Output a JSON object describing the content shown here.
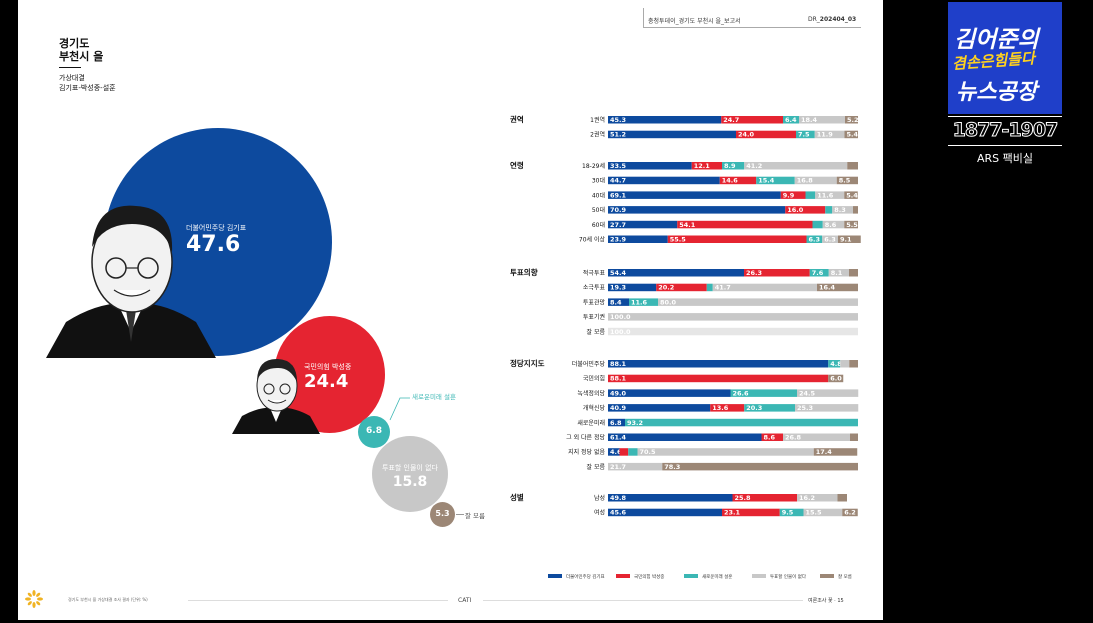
{
  "header": {
    "doc_title": "충청투데이_경기도 부천시 을_보고서",
    "doc_code": "DR_",
    "doc_code_bold": "202404_03",
    "region": [
      "경기도",
      "부천시 을"
    ],
    "subtitle": [
      "가상대결",
      "김기표-박성중-설훈"
    ]
  },
  "bubbles": [
    {
      "label": "더불어민주당 김기표",
      "value": "47.6",
      "color": "#0d4a9e"
    },
    {
      "label": "국민의힘 박성중",
      "value": "24.4",
      "color": "#e52431"
    },
    {
      "label": "새로운미래 설훈",
      "value": "6.8",
      "color": "#3bb7b4"
    },
    {
      "label": "투표할 인물이 없다",
      "value": "15.8",
      "color": "#c8c8c8"
    },
    {
      "label": "잘 모름",
      "value": "5.3",
      "color": "#9c8776"
    }
  ],
  "colors": {
    "blue": "#0d4a9e",
    "red": "#e52431",
    "teal": "#3bb7b4",
    "gray": "#c8c8c8",
    "brown": "#9c8776",
    "lightgray": "#e6e6e6"
  },
  "chart_data": {
    "type": "bar",
    "orientation": "horizontal",
    "stacked": true,
    "series": [
      "더불어민주당 김기표",
      "국민의힘 박성중",
      "새로운미래 설훈",
      "투표할 인물이 없다",
      "잘 모름"
    ],
    "groups": [
      {
        "name": "권역",
        "rows": [
          {
            "label": "1권역",
            "values": [
              45.3,
              24.7,
              6.4,
              18.4,
              5.2
            ]
          },
          {
            "label": "2권역",
            "values": [
              51.2,
              24.0,
              7.5,
              11.9,
              5.4
            ]
          }
        ]
      },
      {
        "name": "연령",
        "rows": [
          {
            "label": "18-29세",
            "values": [
              33.5,
              12.1,
              8.9,
              41.2,
              4.3
            ]
          },
          {
            "label": "30대",
            "values": [
              44.7,
              14.6,
              15.4,
              16.8,
              8.5
            ]
          },
          {
            "label": "40대",
            "values": [
              69.1,
              9.9,
              3.9,
              11.6,
              5.4
            ]
          },
          {
            "label": "50대",
            "values": [
              70.9,
              16.0,
              2.8,
              8.3,
              2.0
            ]
          },
          {
            "label": "60대",
            "values": [
              27.7,
              54.1,
              4.1,
              8.6,
              5.5
            ]
          },
          {
            "label": "70세 이상",
            "values": [
              23.9,
              55.5,
              6.3,
              6.3,
              9.1
            ]
          }
        ]
      },
      {
        "name": "투표의향",
        "rows": [
          {
            "label": "적극투표",
            "values": [
              54.4,
              26.3,
              7.6,
              8.1,
              3.6
            ]
          },
          {
            "label": "소극투표",
            "values": [
              19.3,
              20.2,
              2.4,
              41.7,
              16.4
            ]
          },
          {
            "label": "투표관망",
            "values": [
              8.4,
              0,
              11.6,
              80.0,
              0
            ]
          },
          {
            "label": "투표기권",
            "values": [
              0,
              0,
              0,
              100.0,
              0
            ]
          },
          {
            "label": "잘 모름",
            "values": [
              0,
              0,
              0,
              0,
              100.0
            ],
            "faint": true
          }
        ]
      },
      {
        "name": "정당지지도",
        "rows": [
          {
            "label": "더불어민주당",
            "values": [
              88.1,
              0,
              4.8,
              3.6,
              3.5
            ]
          },
          {
            "label": "국민의힘",
            "values": [
              0,
              88.1,
              0,
              0,
              6.0
            ]
          },
          {
            "label": "녹색정의당",
            "values": [
              49.0,
              0,
              26.6,
              24.5,
              0
            ]
          },
          {
            "label": "개혁신당",
            "values": [
              40.9,
              13.6,
              20.3,
              25.3,
              0
            ]
          },
          {
            "label": "새로운미래",
            "values": [
              6.8,
              0,
              93.2,
              0,
              0
            ]
          },
          {
            "label": "그 외 다른 정당",
            "values": [
              61.4,
              8.6,
              0,
              26.8,
              3.2
            ]
          },
          {
            "label": "지지 정당 없음",
            "values": [
              4.6,
              3.5,
              3.7,
              70.5,
              17.4
            ]
          },
          {
            "label": "잘 모름",
            "values": [
              0,
              0,
              0,
              21.7,
              78.3
            ]
          }
        ]
      },
      {
        "name": "성별",
        "rows": [
          {
            "label": "남성",
            "values": [
              49.8,
              25.8,
              0,
              16.2,
              3.8
            ]
          },
          {
            "label": "여성",
            "values": [
              45.6,
              23.1,
              9.5,
              15.5,
              6.2
            ]
          }
        ]
      }
    ],
    "legend": [
      "더불어민주당 김기표",
      "국민의힘 박성중",
      "새로운미래 설훈",
      "투표할 인물이 없다",
      "잘 모름"
    ],
    "xlim": [
      0,
      100
    ]
  },
  "footer": {
    "note": "경기도 부천시 을 가상대결 조사 결과 (단위: %)",
    "center": "CATI",
    "right": "여론조사 꽃 · 15"
  },
  "logo": {
    "line1": "김어준의",
    "line2": "겸손은힘들다",
    "line3": "뉴스공장",
    "range": "1877-1907",
    "ars": "ARS 팩비실"
  }
}
